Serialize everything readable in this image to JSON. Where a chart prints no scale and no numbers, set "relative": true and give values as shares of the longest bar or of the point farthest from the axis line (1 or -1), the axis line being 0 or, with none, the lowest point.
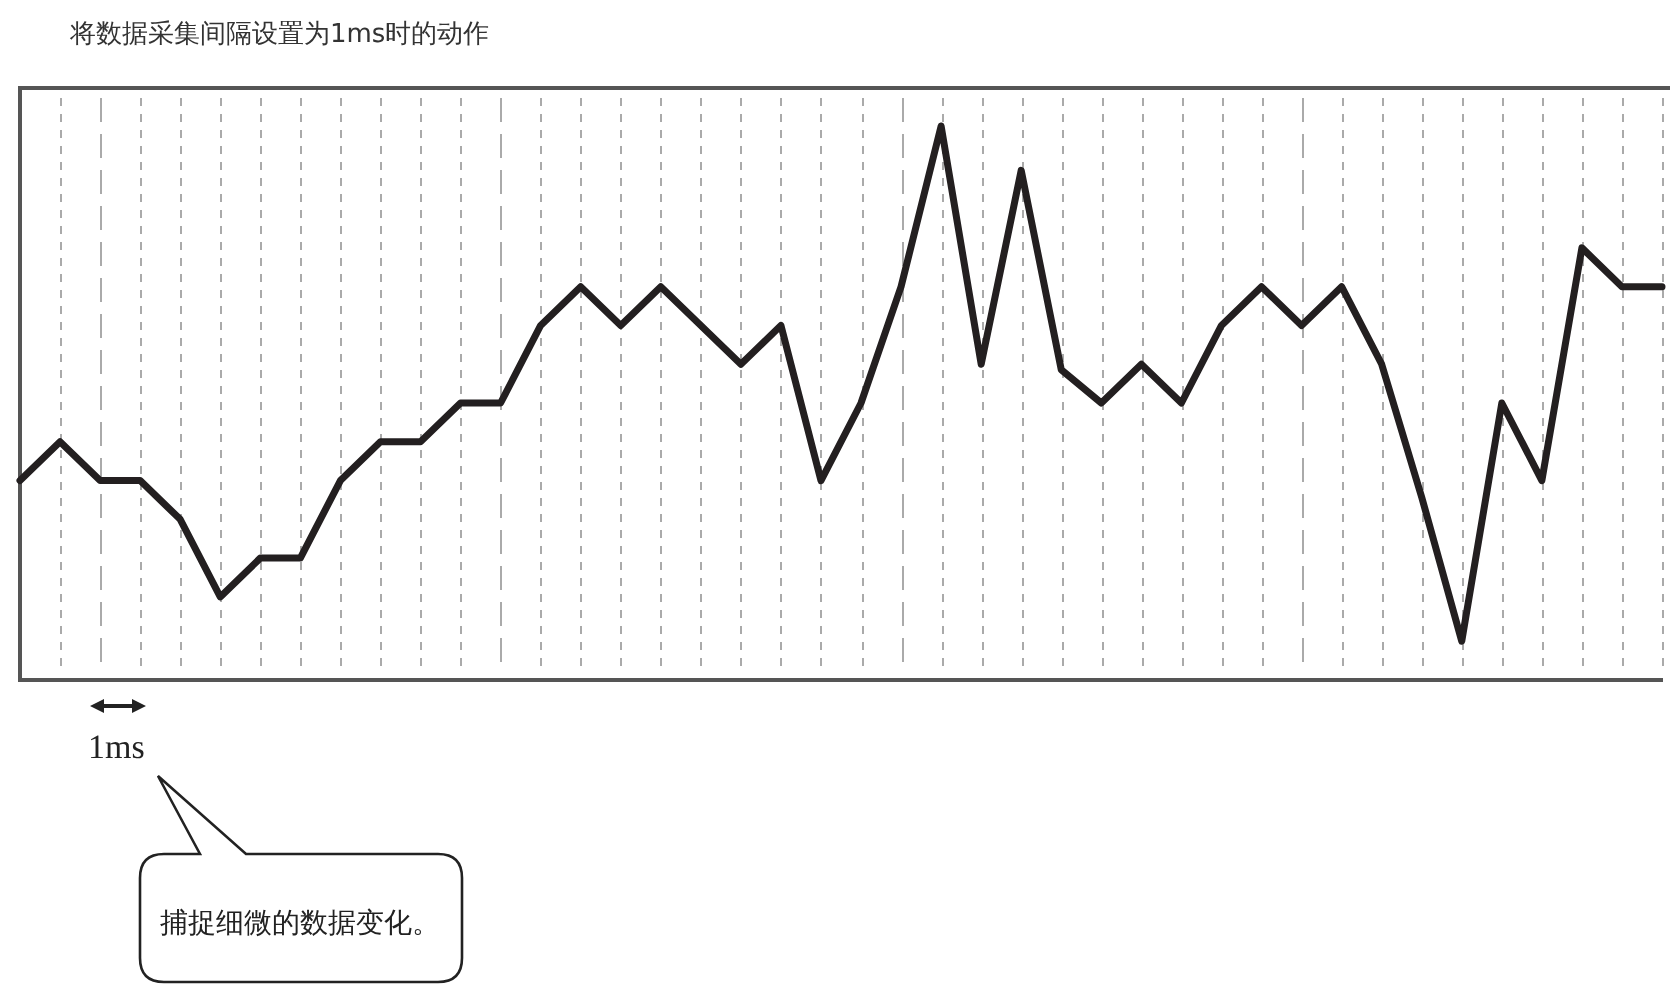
{
  "chart_data": {
    "type": "line",
    "title": "将数据采集间隔设置为1ms时的动作",
    "relative": true,
    "categories": [
      null,
      null,
      null,
      null,
      null,
      null,
      null,
      null,
      null,
      null,
      null,
      null,
      null,
      null,
      null,
      null,
      null,
      null,
      null,
      null,
      null,
      null,
      null,
      null,
      null,
      null,
      null,
      null,
      null,
      null,
      null,
      null,
      null,
      null,
      null,
      null,
      null,
      null,
      null,
      null,
      null,
      null
    ],
    "series": [
      {
        "color": "#231f20",
        "values": [
          0.36,
          0.43,
          0.36,
          0.36,
          0.29,
          0.15,
          0.22,
          0.22,
          0.36,
          0.43,
          0.43,
          0.5,
          0.5,
          0.64,
          0.71,
          0.64,
          0.71,
          0.64,
          0.57,
          0.64,
          0.36,
          0.5,
          0.71,
          1,
          0.57,
          0.92,
          0.56,
          0.5,
          0.57,
          0.5,
          0.64,
          0.71,
          0.64,
          0.71,
          0.57,
          0.33,
          0.07,
          0.5,
          0.36,
          0.78,
          0.71,
          0.71
        ]
      }
    ],
    "grid": "x",
    "legend": false,
    "annotations": [
      "1ms",
      "捕捉细微的数据变化。"
    ]
  }
}
